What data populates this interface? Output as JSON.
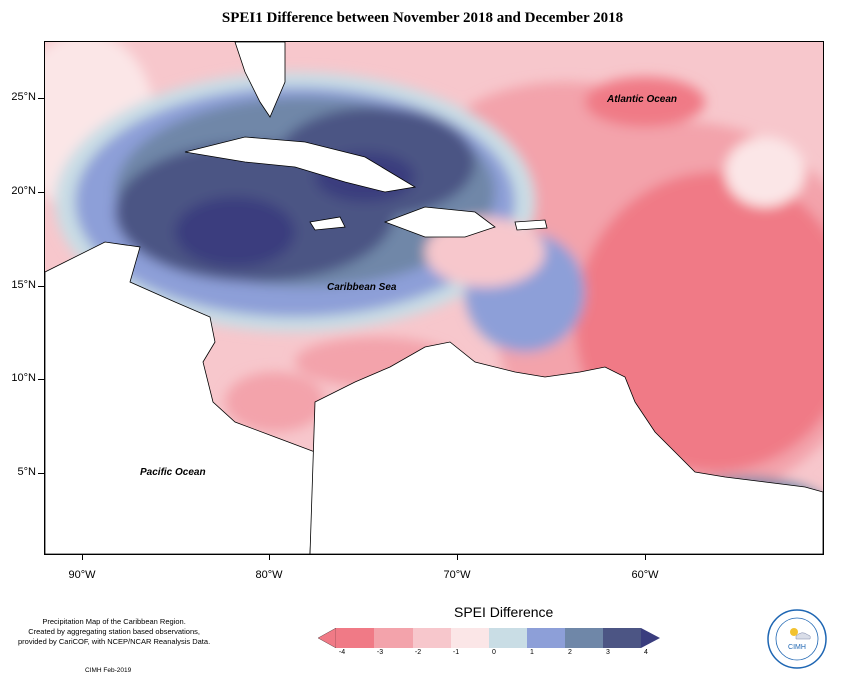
{
  "title": "SPEI1 Difference between November 2018 and December 2018",
  "map": {
    "latitude_ticks": [
      "25°N",
      "20°N",
      "15°N",
      "10°N",
      "5°N"
    ],
    "longitude_ticks": [
      "90°W",
      "80°W",
      "70°W",
      "60°W"
    ],
    "labels": {
      "atlantic": "Atlantic Ocean",
      "caribbean": "Caribbean Sea",
      "pacific": "Pacific Ocean"
    },
    "lon_range": [
      -92.5,
      -51.5
    ],
    "lat_range": [
      0.5,
      28
    ]
  },
  "legend": {
    "title": "SPEI Difference",
    "bins": [
      {
        "color": "#f07a86"
      },
      {
        "color": "#f3a3ab"
      },
      {
        "color": "#f7c7cc"
      },
      {
        "color": "#fbe6e7"
      },
      {
        "color": "#c9dde5"
      },
      {
        "color": "#8d9fd8"
      },
      {
        "color": "#6f87a8"
      },
      {
        "color": "#4c5584"
      },
      {
        "color": "#3a3d7e"
      }
    ],
    "tick_labels": [
      "-4",
      "-3",
      "-2",
      "-1",
      "0",
      "1",
      "2",
      "3",
      "4"
    ]
  },
  "footer": {
    "line1": "Precipitation Map of the Caribbean Region.",
    "line2": "Created by aggregating station based observations,",
    "line3": "provided by CariCOF, with NCEP/NCAR Reanalysis Data.",
    "credit": "CIMH Feb-2019"
  },
  "logo": {
    "text": "CIMH"
  }
}
